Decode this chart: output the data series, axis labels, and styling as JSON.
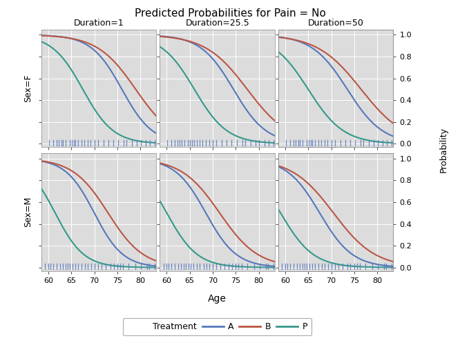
{
  "title": "Predicted Probabilities for Pain = No",
  "xlabel": "Age",
  "ylabel": "Probability",
  "col_labels": [
    "Duration=1",
    "Duration=25.5",
    "Duration=50"
  ],
  "row_labels": [
    "Sex=F",
    "Sex=M"
  ],
  "yticks": [
    0.0,
    0.2,
    0.4,
    0.6,
    0.8,
    1.0
  ],
  "xticks": [
    60,
    65,
    70,
    75,
    80
  ],
  "color_A": "#5577bb",
  "color_B": "#bb5544",
  "color_P": "#33998a",
  "bg_color": "#dcdcdc",
  "line_width": 1.5,
  "curve_params": {
    "F_1": [
      76.0,
      0.3,
      79.0,
      0.24,
      67.5,
      0.3
    ],
    "F_25.5": [
      74.5,
      0.28,
      77.5,
      0.22,
      66.0,
      0.28
    ],
    "F_50": [
      73.5,
      0.26,
      76.5,
      0.21,
      65.0,
      0.26
    ],
    "M_1": [
      70.0,
      0.32,
      73.0,
      0.26,
      61.5,
      0.32
    ],
    "M_25.5": [
      68.5,
      0.3,
      71.5,
      0.24,
      60.0,
      0.3
    ],
    "M_50": [
      67.5,
      0.28,
      70.5,
      0.22,
      59.0,
      0.28
    ]
  },
  "rug_F": [
    60.1,
    61.0,
    61.8,
    62.3,
    62.8,
    63.2,
    63.8,
    64.6,
    65.1,
    65.5,
    65.9,
    66.5,
    67.2,
    67.8,
    68.5,
    69.2,
    70.0,
    70.8,
    72.0,
    73.0,
    74.1,
    75.2,
    76.4,
    77.0,
    78.2,
    79.3,
    80.1,
    81.2,
    82.1,
    83.2
  ],
  "rug_M": [
    59.3,
    60.0,
    60.4,
    61.0,
    61.8,
    62.5,
    63.1,
    63.7,
    64.2,
    64.7,
    65.2,
    65.8,
    66.5,
    67.2,
    68.0,
    68.6,
    69.3,
    70.0,
    70.8,
    71.6,
    72.5,
    73.5,
    74.2,
    75.0,
    75.6,
    76.3,
    77.5,
    79.0,
    80.2,
    81.5,
    82.0,
    83.2
  ],
  "age_min": 58.5,
  "age_max": 83.5
}
